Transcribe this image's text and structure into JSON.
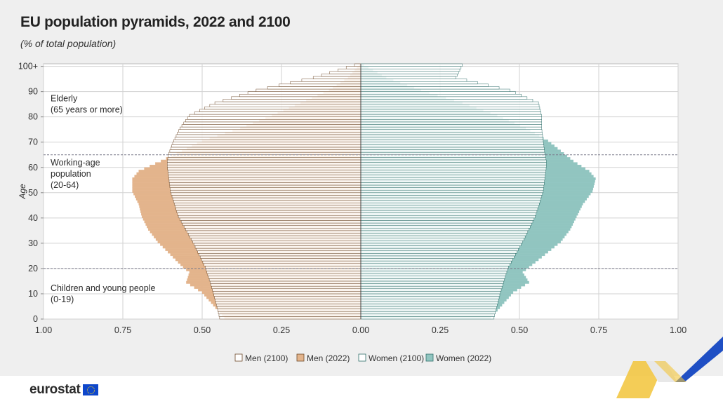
{
  "title": "EU population pyramids, 2022 and 2100",
  "subtitle": "(% of total population)",
  "brand": "eurostat",
  "colors": {
    "men_fill": "#e3b48c",
    "men_stroke": "#6e4a2a",
    "women_fill": "#91c5c0",
    "women_stroke": "#2f6f6a",
    "hollow_fill": "#ffffff",
    "grid": "#d2d2d2",
    "background": "#efefef",
    "plot_background": "#ffffff"
  },
  "chart_data": {
    "type": "bar",
    "orientation": "horizontal",
    "title": "EU population pyramids, 2022 and 2100",
    "xlabel": "",
    "ylabel": "Age",
    "xlim": [
      -1.0,
      1.0
    ],
    "ylim": [
      0,
      100
    ],
    "x_ticks": [
      {
        "value": -1.0,
        "label": "1.00"
      },
      {
        "value": -0.75,
        "label": "0.75"
      },
      {
        "value": -0.5,
        "label": "0.50"
      },
      {
        "value": -0.25,
        "label": "0.25"
      },
      {
        "value": 0,
        "label": "0.00"
      },
      {
        "value": 0.25,
        "label": "0.25"
      },
      {
        "value": 0.5,
        "label": "0.50"
      },
      {
        "value": 0.75,
        "label": "0.75"
      },
      {
        "value": 1.0,
        "label": "1.00"
      }
    ],
    "y_ticks": [
      {
        "value": 0,
        "label": "0"
      },
      {
        "value": 10,
        "label": "10"
      },
      {
        "value": 20,
        "label": "20"
      },
      {
        "value": 30,
        "label": "30"
      },
      {
        "value": 40,
        "label": "40"
      },
      {
        "value": 50,
        "label": "50"
      },
      {
        "value": 60,
        "label": "60"
      },
      {
        "value": 70,
        "label": "70"
      },
      {
        "value": 80,
        "label": "80"
      },
      {
        "value": 90,
        "label": "90"
      },
      {
        "value": 100,
        "label": "100+"
      }
    ],
    "separators": [
      {
        "age": 19.5,
        "style": "dashed"
      },
      {
        "age": 64.5,
        "style": "dashed"
      }
    ],
    "annotations": [
      {
        "text": [
          "Elderly",
          "(65 years or more)"
        ],
        "age": 85
      },
      {
        "text": [
          "Working-age",
          "population",
          "(20-64)"
        ],
        "age": 57.5
      },
      {
        "text": [
          "Children and young people",
          "(0-19)"
        ],
        "age": 10
      }
    ],
    "legend_position": "bottom-center",
    "series": [
      {
        "name": "Men (2100)",
        "sex": "men",
        "year": 2100,
        "style": "hollow",
        "age_anchors": [
          0,
          10,
          20,
          30,
          40,
          50,
          60,
          62,
          65,
          70,
          75,
          80,
          85,
          90,
          95,
          100
        ],
        "value_anchors": [
          0.445,
          0.465,
          0.49,
          0.53,
          0.575,
          0.6,
          0.61,
          0.61,
          0.605,
          0.59,
          0.57,
          0.54,
          0.46,
          0.33,
          0.15,
          0.02
        ]
      },
      {
        "name": "Men (2022)",
        "sex": "men",
        "year": 2022,
        "style": "filled",
        "age_anchors": [
          0,
          10,
          14,
          18,
          20,
          25,
          30,
          35,
          40,
          45,
          50,
          55,
          58,
          62,
          65,
          70,
          75,
          80,
          85,
          90,
          95,
          100
        ],
        "value_anchors": [
          0.43,
          0.5,
          0.55,
          0.54,
          0.56,
          0.6,
          0.64,
          0.67,
          0.69,
          0.7,
          0.72,
          0.72,
          0.7,
          0.63,
          0.58,
          0.5,
          0.38,
          0.28,
          0.19,
          0.1,
          0.04,
          0.005
        ]
      },
      {
        "name": "Women (2100)",
        "sex": "women",
        "year": 2100,
        "style": "hollow",
        "age_anchors": [
          0,
          10,
          20,
          30,
          40,
          50,
          60,
          62,
          65,
          70,
          75,
          80,
          85,
          90,
          95,
          100
        ],
        "value_anchors": [
          0.42,
          0.44,
          0.465,
          0.51,
          0.55,
          0.575,
          0.585,
          0.585,
          0.58,
          0.575,
          0.57,
          0.57,
          0.56,
          0.47,
          0.3,
          0.32
        ]
      },
      {
        "name": "Women (2022)",
        "sex": "women",
        "year": 2022,
        "style": "filled",
        "age_anchors": [
          0,
          10,
          14,
          18,
          20,
          25,
          30,
          35,
          40,
          45,
          50,
          55,
          58,
          62,
          65,
          70,
          75,
          80,
          85,
          90,
          95,
          100
        ],
        "value_anchors": [
          0.41,
          0.48,
          0.53,
          0.51,
          0.53,
          0.58,
          0.63,
          0.66,
          0.68,
          0.7,
          0.73,
          0.74,
          0.72,
          0.67,
          0.64,
          0.59,
          0.52,
          0.43,
          0.32,
          0.19,
          0.08,
          0.01
        ]
      }
    ]
  }
}
